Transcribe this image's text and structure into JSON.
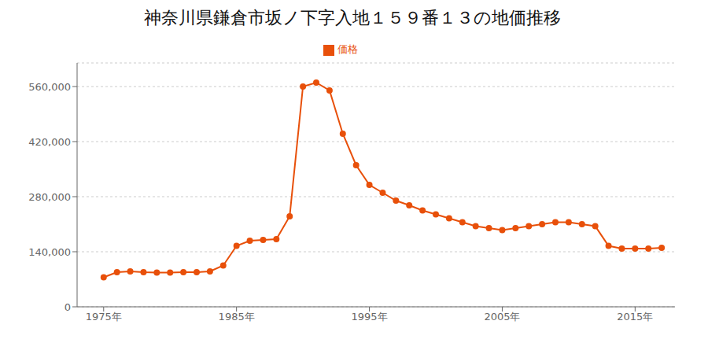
{
  "chart_data": {
    "type": "line",
    "title": "神奈川県鎌倉市坂ノ下字入地１５９番１３の地価推移",
    "x": [
      1975,
      1976,
      1977,
      1978,
      1979,
      1980,
      1981,
      1982,
      1983,
      1984,
      1985,
      1986,
      1987,
      1988,
      1989,
      1990,
      1991,
      1992,
      1993,
      1994,
      1995,
      1996,
      1997,
      1998,
      1999,
      2000,
      2001,
      2002,
      2003,
      2004,
      2005,
      2006,
      2007,
      2008,
      2009,
      2010,
      2011,
      2012,
      2013,
      2014,
      2015,
      2016,
      2017
    ],
    "series": [
      {
        "name": "価格",
        "color": "#e8500a",
        "marker": "circle",
        "values": [
          75000,
          88000,
          90000,
          88000,
          87000,
          87000,
          88000,
          88000,
          90000,
          105000,
          155000,
          168000,
          170000,
          172000,
          230000,
          560000,
          570000,
          550000,
          440000,
          360000,
          310000,
          290000,
          270000,
          258000,
          245000,
          235000,
          225000,
          215000,
          205000,
          200000,
          195000,
          200000,
          205000,
          210000,
          215000,
          215000,
          210000,
          205000,
          155000,
          148000,
          148000,
          148000,
          150000
        ]
      }
    ],
    "xlim": [
      1973,
      2018
    ],
    "xticks": [
      {
        "value": 1975,
        "label": "1975年"
      },
      {
        "value": 1985,
        "label": "1985年"
      },
      {
        "value": 1995,
        "label": "1995年"
      },
      {
        "value": 2005,
        "label": "2005年"
      },
      {
        "value": 2015,
        "label": "2015年"
      }
    ],
    "ylim": [
      0,
      620000
    ],
    "yticks": [
      0,
      {
        "value": 140000,
        "label": "140,000"
      },
      {
        "value": 280000,
        "label": "280,000"
      },
      {
        "value": 420000,
        "label": "420,000"
      },
      {
        "value": 560000,
        "label": "560,000"
      }
    ],
    "grid": "y",
    "legend": "top"
  }
}
